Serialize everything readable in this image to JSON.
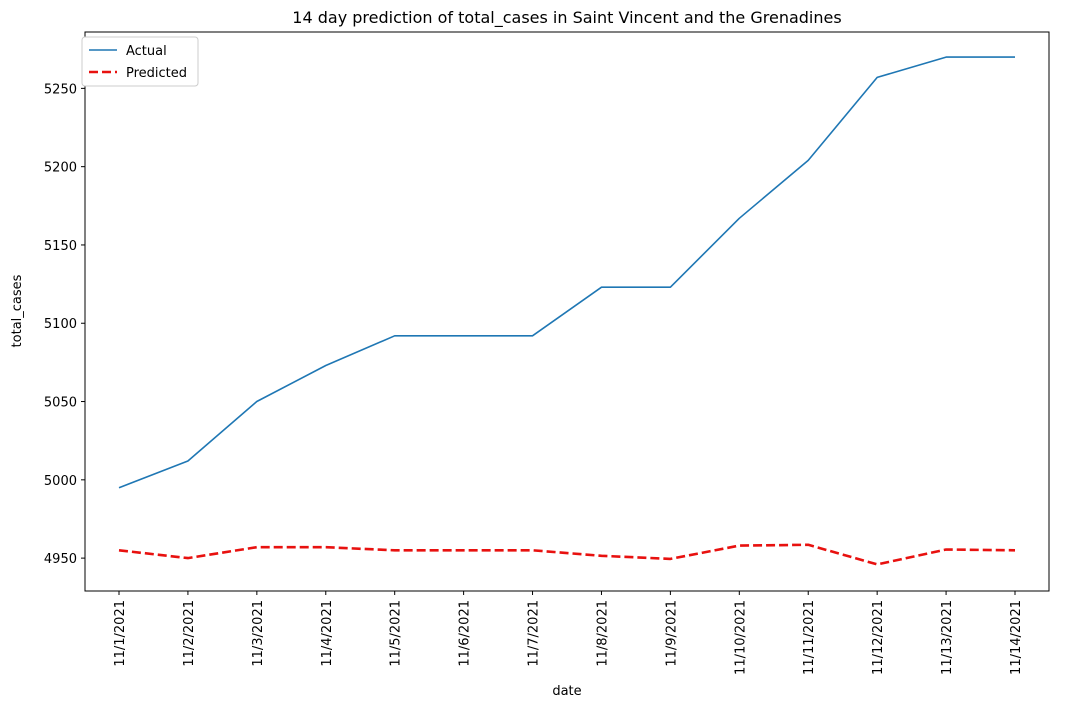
{
  "chart_data": {
    "type": "line",
    "title": "14 day prediction of total_cases in Saint Vincent and the Grenadines",
    "xlabel": "date",
    "ylabel": "total_cases",
    "categories": [
      "11/1/2021",
      "11/2/2021",
      "11/3/2021",
      "11/4/2021",
      "11/5/2021",
      "11/6/2021",
      "11/7/2021",
      "11/8/2021",
      "11/9/2021",
      "11/10/2021",
      "11/11/2021",
      "11/12/2021",
      "11/13/2021",
      "11/14/2021"
    ],
    "ylim": [
      4929,
      5286
    ],
    "yticks": [
      4950,
      5000,
      5050,
      5100,
      5150,
      5200,
      5250
    ],
    "grid": false,
    "legend_position": "top-left",
    "series": [
      {
        "name": "Actual",
        "color": "#1f77b4",
        "style": "solid",
        "values": [
          4995,
          5012,
          5050,
          5073,
          5092,
          5092,
          5092,
          5123,
          5123,
          5167,
          5204,
          5257,
          5270,
          5270
        ]
      },
      {
        "name": "Predicted",
        "color": "#e8110f",
        "style": "dashed",
        "values": [
          4955,
          4950,
          4957,
          4957,
          4955,
          4955,
          4955,
          4951.5,
          4949.5,
          4958,
          4958.5,
          4946,
          4955.5,
          4955
        ]
      }
    ]
  }
}
